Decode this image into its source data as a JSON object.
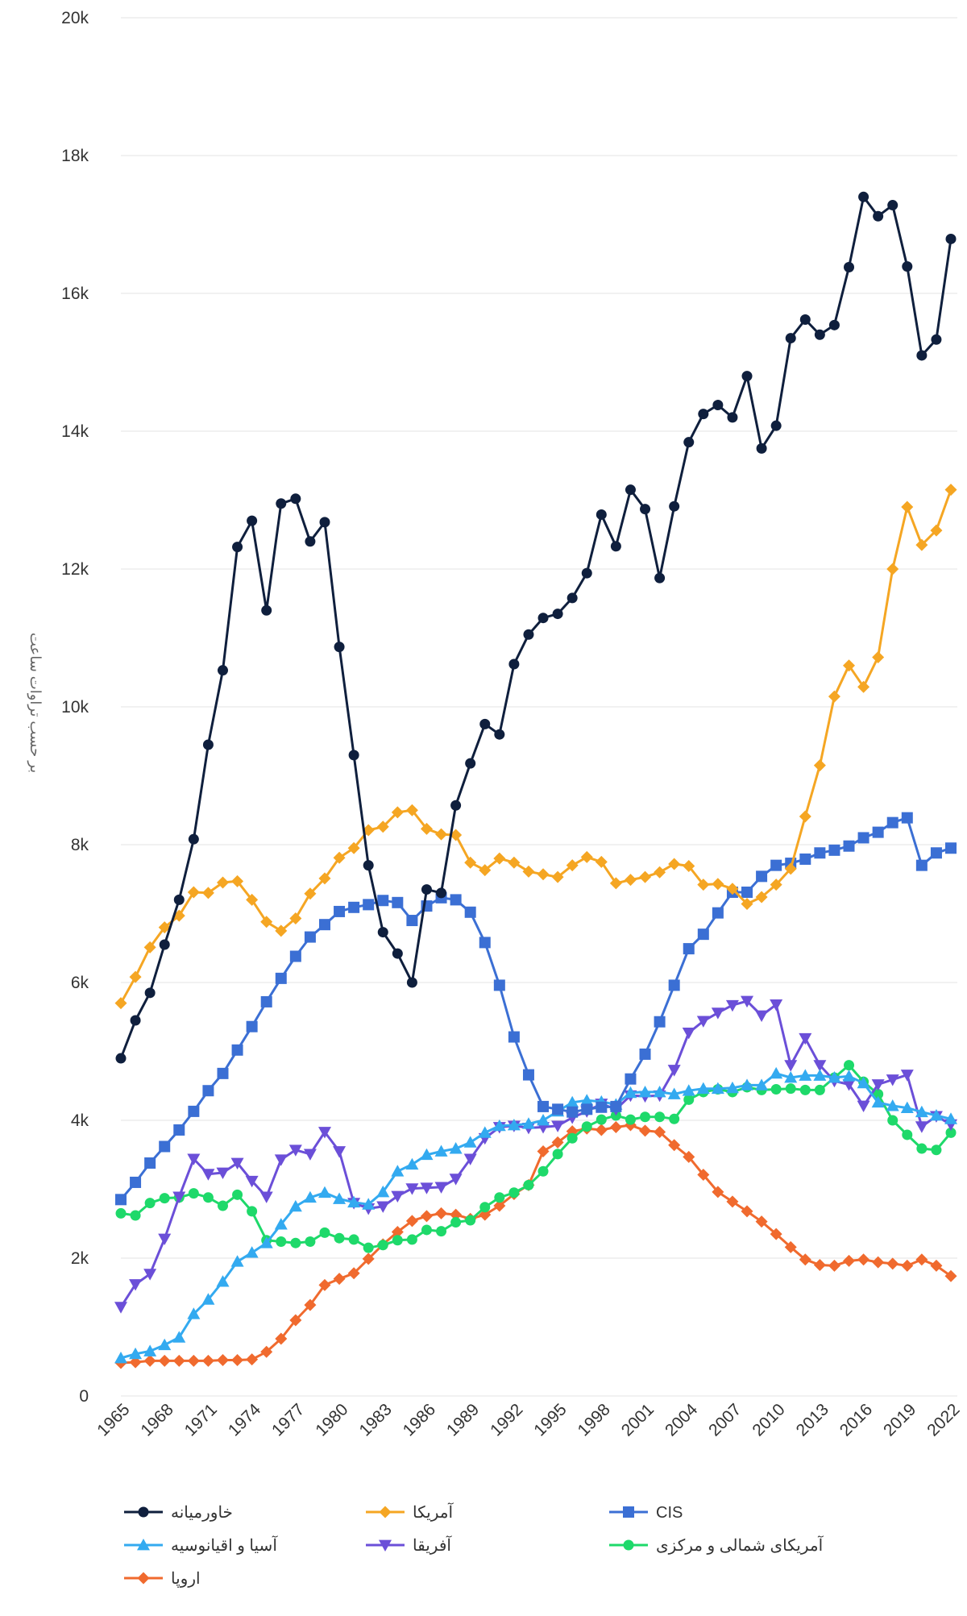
{
  "chart_data": {
    "type": "line",
    "title": "",
    "ylabel": "بر حسب تراوات ساعت",
    "xlabel": "",
    "ylim": [
      0,
      20000
    ],
    "y_ticks": [
      0,
      2000,
      4000,
      6000,
      8000,
      10000,
      12000,
      14000,
      16000,
      18000,
      20000
    ],
    "y_tick_labels": [
      "0",
      "2k",
      "4k",
      "6k",
      "8k",
      "10k",
      "12k",
      "14k",
      "16k",
      "18k",
      "20k"
    ],
    "x_tick_labels": [
      "1965",
      "1968",
      "1971",
      "1974",
      "1977",
      "1980",
      "1983",
      "1986",
      "1989",
      "1992",
      "1995",
      "1998",
      "2001",
      "2004",
      "2007",
      "2010",
      "2013",
      "2016",
      "2019",
      "2022"
    ],
    "grid": true,
    "legend_position": "bottom",
    "x": [
      1965,
      1966,
      1967,
      1968,
      1969,
      1970,
      1971,
      1972,
      1973,
      1974,
      1975,
      1976,
      1977,
      1978,
      1979,
      1980,
      1981,
      1982,
      1983,
      1984,
      1985,
      1986,
      1987,
      1988,
      1989,
      1990,
      1991,
      1992,
      1993,
      1994,
      1995,
      1996,
      1997,
      1998,
      1999,
      2000,
      2001,
      2002,
      2003,
      2004,
      2005,
      2006,
      2007,
      2008,
      2009,
      2010,
      2011,
      2012,
      2013,
      2014,
      2015,
      2016,
      2017,
      2018,
      2019,
      2020,
      2021,
      2022
    ],
    "series": [
      {
        "name": "خاورمیانه",
        "color": "#0f1f3d",
        "marker": "circle",
        "values": [
          4900,
          5450,
          5850,
          6550,
          7200,
          8080,
          9450,
          10530,
          12320,
          12700,
          11400,
          12950,
          13020,
          12400,
          12680,
          10870,
          9300,
          7700,
          6730,
          6420,
          6000,
          7350,
          7300,
          8570,
          9180,
          9750,
          9600,
          10620,
          11050,
          11290,
          11350,
          11580,
          11940,
          12790,
          12330,
          13150,
          12870,
          11870,
          12910,
          13840,
          14250,
          14380,
          14200,
          14800,
          13750,
          14080,
          15350,
          15620,
          15400,
          15540,
          16380,
          17400,
          17120,
          17280,
          16390,
          15100,
          15330,
          16790
        ]
      },
      {
        "name": "آمریکا",
        "color": "#f5a623",
        "marker": "diamond",
        "values": [
          5700,
          6080,
          6510,
          6800,
          6970,
          7310,
          7300,
          7450,
          7470,
          7200,
          6880,
          6750,
          6930,
          7290,
          7510,
          7810,
          7950,
          8210,
          8260,
          8470,
          8500,
          8230,
          8150,
          8140,
          7740,
          7630,
          7800,
          7740,
          7610,
          7570,
          7530,
          7700,
          7820,
          7750,
          7440,
          7490,
          7530,
          7600,
          7720,
          7690,
          7420,
          7430,
          7360,
          7140,
          7240,
          7420,
          7650,
          8410,
          9150,
          10150,
          10600,
          10290,
          10720,
          12000,
          12900,
          12350,
          12560,
          13150
        ]
      },
      {
        "name": "CIS",
        "color": "#3b6fd4",
        "marker": "square",
        "values": [
          2850,
          3100,
          3380,
          3620,
          3860,
          4130,
          4430,
          4680,
          5020,
          5360,
          5720,
          6060,
          6380,
          6660,
          6840,
          7030,
          7090,
          7130,
          7190,
          7160,
          6900,
          7110,
          7230,
          7200,
          7020,
          6580,
          5960,
          5210,
          4660,
          4200,
          4160,
          4120,
          4160,
          4190,
          4200,
          4600,
          4960,
          5430,
          5960,
          6490,
          6700,
          7010,
          7310,
          7310,
          7540,
          7700,
          7730,
          7790,
          7880,
          7920,
          7980,
          8100,
          8180,
          8320,
          8390,
          7700,
          7880,
          7950
        ]
      },
      {
        "name": "آسیا و اقیانوسیه",
        "color": "#33aaf0",
        "marker": "triangle",
        "values": [
          550,
          610,
          650,
          740,
          850,
          1190,
          1400,
          1660,
          1950,
          2080,
          2220,
          2490,
          2750,
          2880,
          2950,
          2860,
          2810,
          2780,
          2960,
          3260,
          3360,
          3500,
          3550,
          3590,
          3680,
          3820,
          3920,
          3930,
          3950,
          4000,
          4130,
          4260,
          4290,
          4270,
          4230,
          4400,
          4410,
          4410,
          4380,
          4430,
          4460,
          4460,
          4470,
          4510,
          4510,
          4680,
          4620,
          4650,
          4650,
          4620,
          4640,
          4540,
          4260,
          4210,
          4180,
          4120,
          4070,
          4020
        ]
      },
      {
        "name": "آفریقا",
        "color": "#6b4fd8",
        "marker": "triangle-down",
        "values": [
          1290,
          1620,
          1770,
          2280,
          2890,
          3440,
          3220,
          3240,
          3380,
          3120,
          2890,
          3430,
          3570,
          3510,
          3830,
          3550,
          2800,
          2720,
          2750,
          2900,
          3010,
          3020,
          3030,
          3150,
          3440,
          3740,
          3900,
          3920,
          3890,
          3900,
          3920,
          4040,
          4130,
          4240,
          4160,
          4360,
          4350,
          4360,
          4730,
          5270,
          5440,
          5560,
          5670,
          5730,
          5520,
          5680,
          4800,
          5190,
          4800,
          4570,
          4520,
          4210,
          4520,
          4590,
          4660,
          3910,
          4060,
          3940
        ]
      },
      {
        "name": "آمریکای شمالی و مرکزی",
        "color": "#1ed96a",
        "marker": "circle",
        "values": [
          2650,
          2620,
          2800,
          2870,
          2880,
          2940,
          2880,
          2760,
          2920,
          2680,
          2260,
          2240,
          2220,
          2240,
          2370,
          2290,
          2270,
          2150,
          2190,
          2260,
          2270,
          2410,
          2390,
          2520,
          2550,
          2740,
          2880,
          2950,
          3060,
          3260,
          3510,
          3740,
          3910,
          4010,
          4070,
          4010,
          4050,
          4050,
          4020,
          4300,
          4410,
          4450,
          4410,
          4480,
          4440,
          4450,
          4460,
          4440,
          4440,
          4620,
          4800,
          4560,
          4380,
          4000,
          3790,
          3590,
          3570,
          3820
        ]
      },
      {
        "name": "اروپا",
        "color": "#f06a2e",
        "marker": "diamond",
        "values": [
          480,
          490,
          510,
          510,
          510,
          510,
          510,
          520,
          520,
          530,
          640,
          830,
          1100,
          1320,
          1610,
          1700,
          1780,
          1990,
          2200,
          2380,
          2540,
          2610,
          2650,
          2630,
          2570,
          2630,
          2760,
          2930,
          3060,
          3550,
          3680,
          3840,
          3880,
          3860,
          3900,
          3930,
          3850,
          3830,
          3640,
          3470,
          3210,
          2960,
          2820,
          2680,
          2530,
          2350,
          2160,
          1980,
          1900,
          1890,
          1960,
          1980,
          1940,
          1920,
          1890,
          1980,
          1890,
          1740
        ]
      }
    ]
  }
}
